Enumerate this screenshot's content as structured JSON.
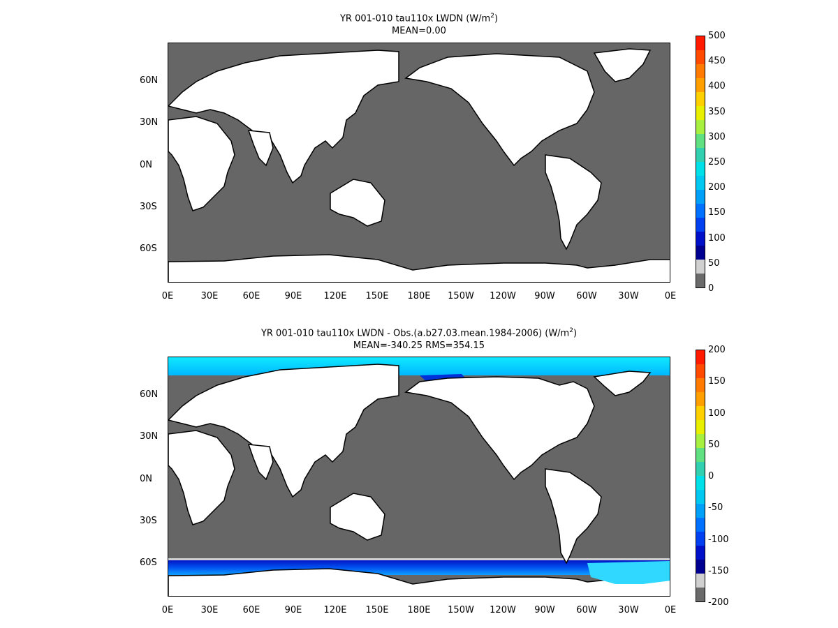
{
  "top": {
    "title_line1": "YR 001-010 tau110x LWDN (W/m",
    "title_sup": "2",
    "title_end": ")",
    "title_line2": "MEAN=0.00",
    "colorbar_labels": [
      "500",
      "450",
      "400",
      "350",
      "300",
      "250",
      "200",
      "150",
      "100",
      "50",
      "0"
    ],
    "colorbar_colors": [
      "#ff1a00",
      "#ff4a00",
      "#ff7a00",
      "#ffa000",
      "#ffd000",
      "#e8f000",
      "#a8f040",
      "#60e080",
      "#30d0b0",
      "#00e0e8",
      "#00c8f0",
      "#00a0f8",
      "#0070ff",
      "#0040f0",
      "#0010c8",
      "#000090",
      "#d0d0d0",
      "#6a6a6a"
    ]
  },
  "bottom": {
    "title_line1": "YR 001-010 tau110x LWDN - Obs.(a.b27.03.mean.1984-2006) (W/m",
    "title_sup": "2",
    "title_end": ")",
    "title_line2": "MEAN=-340.25 RMS=354.15",
    "colorbar_labels": [
      "200",
      "150",
      "100",
      "50",
      "0",
      "-50",
      "-100",
      "-150",
      "-200"
    ],
    "colorbar_colors": [
      "#ff1a00",
      "#ff4a00",
      "#ff7a00",
      "#ffa000",
      "#ffd000",
      "#e8f000",
      "#a8f040",
      "#60e080",
      "#30d0b0",
      "#00e0e8",
      "#00c8f0",
      "#00a0f8",
      "#0070ff",
      "#0040f0",
      "#0010c8",
      "#000090",
      "#d0d0d0",
      "#6a6a6a"
    ]
  },
  "lat_labels": [
    "60N",
    "30N",
    "0N",
    "30S",
    "60S"
  ],
  "lon_labels": [
    "0E",
    "30E",
    "60E",
    "90E",
    "120E",
    "150E",
    "180E",
    "150W",
    "120W",
    "90W",
    "60W",
    "30W",
    "0E"
  ],
  "colors": {
    "ocean": "#666666",
    "land": "#ffffff",
    "ice_light": "#10e8ff",
    "ice_dark": "#0040e0",
    "coast": "#000000"
  }
}
